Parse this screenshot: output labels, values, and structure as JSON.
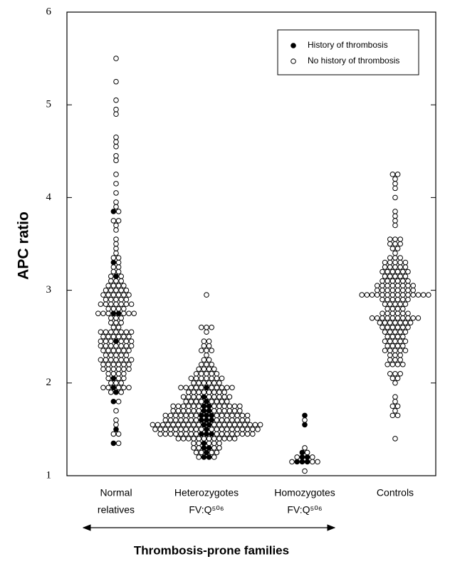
{
  "chart_data": {
    "type": "beeswarm",
    "y_label": "APC ratio",
    "x_group_label": "Thrombosis-prone families",
    "categories": [
      [
        "Normal",
        "relatives"
      ],
      [
        "Heterozygotes",
        "FV:Q⁵⁰⁶"
      ],
      [
        "Homozygotes",
        "FV:Q⁵⁰⁶"
      ],
      [
        "Controls"
      ]
    ],
    "ylim": [
      1,
      6
    ],
    "yticks": [
      1,
      2,
      3,
      4,
      5,
      6
    ],
    "legend": "upper right",
    "series": [
      {
        "name": "History of thrombosis",
        "color": "#000000",
        "values": [
          [
            3.85,
            3.3,
            3.15,
            2.75,
            2.75,
            2.45,
            2.05,
            1.95,
            1.9,
            1.8,
            1.5,
            1.35
          ],
          [
            1.95,
            1.85,
            1.8,
            1.75,
            1.75,
            1.7,
            1.7,
            1.65,
            1.65,
            1.65,
            1.6,
            1.6,
            1.6,
            1.55,
            1.55,
            1.5,
            1.45,
            1.45,
            1.45,
            1.35,
            1.3,
            1.3,
            1.25,
            1.2,
            1.2
          ],
          [
            1.65,
            1.55,
            1.25,
            1.2,
            1.2,
            1.15,
            1.15,
            1.15
          ],
          []
        ]
      },
      {
        "name": "No history of thrombosis",
        "color": "#ffffff",
        "values": [
          [
            5.5,
            5.25,
            5.05,
            4.95,
            4.9,
            4.65,
            4.6,
            4.55,
            4.45,
            4.4,
            4.25,
            4.15,
            4.05,
            3.95,
            3.9,
            3.85,
            3.75,
            3.75,
            3.7,
            3.65,
            3.55,
            3.5,
            3.45,
            3.4,
            3.35,
            3.35,
            3.3,
            3.25,
            3.25,
            3.2,
            3.2,
            3.15,
            3.15,
            3.1,
            3.1,
            3.1,
            3.05,
            3.05,
            3.05,
            3.05,
            3,
            3,
            3,
            3,
            3,
            2.95,
            2.95,
            2.95,
            2.95,
            2.95,
            2.95,
            2.9,
            2.9,
            2.9,
            2.9,
            2.9,
            2.85,
            2.85,
            2.85,
            2.85,
            2.85,
            2.85,
            2.85,
            2.8,
            2.8,
            2.8,
            2.8,
            2.75,
            2.75,
            2.75,
            2.75,
            2.75,
            2.75,
            2.7,
            2.7,
            2.7,
            2.65,
            2.65,
            2.65,
            2.6,
            2.6,
            2.55,
            2.55,
            2.55,
            2.55,
            2.55,
            2.55,
            2.55,
            2.5,
            2.5,
            2.5,
            2.5,
            2.5,
            2.5,
            2.45,
            2.45,
            2.45,
            2.45,
            2.45,
            2.45,
            2.4,
            2.4,
            2.4,
            2.4,
            2.4,
            2.4,
            2.4,
            2.35,
            2.35,
            2.35,
            2.35,
            2.35,
            2.35,
            2.3,
            2.3,
            2.3,
            2.3,
            2.3,
            2.25,
            2.25,
            2.25,
            2.25,
            2.25,
            2.25,
            2.25,
            2.2,
            2.2,
            2.2,
            2.2,
            2.2,
            2.2,
            2.15,
            2.15,
            2.15,
            2.15,
            2.15,
            2.15,
            2.1,
            2.1,
            2.1,
            2.1,
            2.05,
            2.05,
            2.05,
            2,
            2,
            2,
            1.95,
            1.95,
            1.95,
            1.95,
            1.95,
            1.9,
            1.9,
            1.8,
            1.7,
            1.6,
            1.55,
            1.45,
            1.45,
            1.35
          ],
          [
            2.95,
            2.6,
            2.6,
            2.6,
            2.55,
            2.45,
            2.45,
            2.4,
            2.4,
            2.35,
            2.35,
            2.35,
            2.3,
            2.25,
            2.25,
            2.2,
            2.2,
            2.2,
            2.15,
            2.15,
            2.15,
            2.15,
            2.1,
            2.1,
            2.1,
            2.1,
            2.1,
            2.05,
            2.05,
            2.05,
            2.05,
            2.05,
            2.05,
            2.05,
            2,
            2,
            2,
            2,
            2,
            2,
            1.95,
            1.95,
            1.95,
            1.95,
            1.95,
            1.95,
            1.95,
            1.95,
            1.95,
            1.95,
            1.9,
            1.9,
            1.9,
            1.9,
            1.9,
            1.9,
            1.9,
            1.9,
            1.85,
            1.85,
            1.85,
            1.85,
            1.85,
            1.85,
            1.85,
            1.85,
            1.85,
            1.8,
            1.8,
            1.8,
            1.8,
            1.8,
            1.8,
            1.8,
            1.8,
            1.75,
            1.75,
            1.75,
            1.75,
            1.75,
            1.75,
            1.75,
            1.75,
            1.75,
            1.75,
            1.75,
            1.75,
            1.7,
            1.7,
            1.7,
            1.7,
            1.7,
            1.7,
            1.7,
            1.7,
            1.7,
            1.7,
            1.7,
            1.7,
            1.65,
            1.65,
            1.65,
            1.65,
            1.65,
            1.65,
            1.65,
            1.65,
            1.65,
            1.65,
            1.65,
            1.65,
            1.65,
            1.65,
            1.6,
            1.6,
            1.6,
            1.6,
            1.6,
            1.6,
            1.6,
            1.6,
            1.6,
            1.6,
            1.6,
            1.6,
            1.6,
            1.6,
            1.55,
            1.55,
            1.55,
            1.55,
            1.55,
            1.55,
            1.55,
            1.55,
            1.55,
            1.55,
            1.55,
            1.55,
            1.55,
            1.55,
            1.55,
            1.55,
            1.55,
            1.55,
            1.55,
            1.55,
            1.5,
            1.5,
            1.5,
            1.5,
            1.5,
            1.5,
            1.5,
            1.5,
            1.5,
            1.5,
            1.5,
            1.5,
            1.5,
            1.5,
            1.5,
            1.5,
            1.5,
            1.5,
            1.5,
            1.5,
            1.45,
            1.45,
            1.45,
            1.45,
            1.45,
            1.45,
            1.45,
            1.45,
            1.45,
            1.45,
            1.45,
            1.45,
            1.45,
            1.45,
            1.45,
            1.45,
            1.4,
            1.4,
            1.4,
            1.4,
            1.4,
            1.4,
            1.4,
            1.4,
            1.4,
            1.4,
            1.4,
            1.4,
            1.35,
            1.35,
            1.35,
            1.35,
            1.35,
            1.3,
            1.3,
            1.3,
            1.3,
            1.25,
            1.25,
            1.25,
            1.25,
            1.2,
            1.2
          ],
          [
            1.6,
            1.3,
            1.25,
            1.2,
            1.2,
            1.15,
            1.15,
            1.15,
            1.05
          ],
          [
            4.25,
            4.25,
            4.2,
            4.15,
            4.1,
            4,
            3.85,
            3.8,
            3.75,
            3.7,
            3.55,
            3.55,
            3.55,
            3.5,
            3.5,
            3.5,
            3.45,
            3.45,
            3.4,
            3.35,
            3.35,
            3.35,
            3.3,
            3.3,
            3.3,
            3.3,
            3.3,
            3.25,
            3.25,
            3.25,
            3.25,
            3.25,
            3.2,
            3.2,
            3.2,
            3.2,
            3.2,
            3.2,
            3.15,
            3.15,
            3.15,
            3.15,
            3.15,
            3.1,
            3.1,
            3.1,
            3.1,
            3.1,
            3.1,
            3.05,
            3.05,
            3.05,
            3.05,
            3.05,
            3.05,
            3.05,
            3.05,
            3,
            3,
            3,
            3,
            3,
            3,
            3,
            3,
            2.95,
            2.95,
            2.95,
            2.95,
            2.95,
            2.95,
            2.95,
            2.95,
            2.95,
            2.95,
            2.95,
            2.95,
            2.95,
            2.95,
            2.9,
            2.9,
            2.9,
            2.9,
            2.9,
            2.9,
            2.85,
            2.85,
            2.85,
            2.85,
            2.85,
            2.8,
            2.8,
            2.8,
            2.8,
            2.75,
            2.75,
            2.75,
            2.75,
            2.75,
            2.75,
            2.7,
            2.7,
            2.7,
            2.7,
            2.7,
            2.7,
            2.7,
            2.7,
            2.7,
            2.7,
            2.65,
            2.65,
            2.65,
            2.65,
            2.65,
            2.65,
            2.65,
            2.6,
            2.6,
            2.6,
            2.6,
            2.6,
            2.6,
            2.55,
            2.55,
            2.55,
            2.55,
            2.55,
            2.5,
            2.5,
            2.5,
            2.5,
            2.45,
            2.45,
            2.45,
            2.45,
            2.45,
            2.4,
            2.4,
            2.4,
            2.4,
            2.35,
            2.35,
            2.35,
            2.35,
            2.35,
            2.3,
            2.3,
            2.3,
            2.25,
            2.25,
            2.25,
            2.2,
            2.2,
            2.2,
            2.2,
            2.1,
            2.1,
            2.1,
            2.05,
            2.05,
            2,
            1.85,
            1.8,
            1.75,
            1.75,
            1.7,
            1.65,
            1.65,
            1.4
          ]
        ]
      }
    ]
  }
}
